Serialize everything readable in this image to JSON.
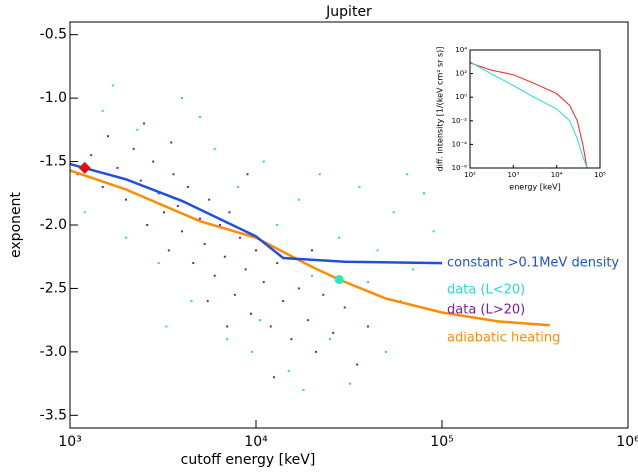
{
  "chart_data": [
    {
      "type": "scatter",
      "title": "Jupiter",
      "x_label": "cutoff energy [keV]",
      "y_label": "exponent",
      "x_log": true,
      "xlim": [
        1000,
        1000000
      ],
      "xticks": [
        {
          "value": 1000,
          "label": "10³"
        },
        {
          "value": 10000,
          "label": "10⁴"
        },
        {
          "value": 100000,
          "label": "10⁵"
        },
        {
          "value": 1000000,
          "label": "10⁶"
        }
      ],
      "ylim": [
        -3.6,
        -0.4
      ],
      "yticks": [
        -0.5,
        {
          "value": -1,
          "label": "-1.0"
        },
        -1.5,
        {
          "value": -2,
          "label": "-2.0"
        },
        -2.5,
        {
          "value": -3,
          "label": "-3.0"
        },
        -3.5
      ],
      "series": [
        {
          "name": "data (L>20)",
          "kind": "points",
          "color": "#7a1ea0",
          "x": [
            1100,
            1300,
            1500,
            1600,
            1800,
            2000,
            2200,
            2400,
            2600,
            2800,
            3000,
            3200,
            3400,
            3600,
            3800,
            4000,
            4300,
            4600,
            5000,
            5300,
            5600,
            6000,
            6400,
            6800,
            7200,
            7700,
            8200,
            8800,
            9400,
            10000,
            11000,
            12000,
            13000,
            14000,
            15500,
            17000,
            19000,
            21000,
            23000,
            26000,
            30000,
            35000,
            40000,
            2500,
            3500,
            5500,
            7000,
            9000,
            12500,
            20000
          ],
          "values": [
            -1.6,
            -1.45,
            -1.7,
            -1.3,
            -1.55,
            -1.8,
            -1.4,
            -1.65,
            -2.0,
            -1.5,
            -1.75,
            -1.9,
            -2.2,
            -1.6,
            -1.85,
            -2.05,
            -1.7,
            -2.3,
            -1.95,
            -2.15,
            -1.8,
            -2.4,
            -2.0,
            -2.25,
            -1.9,
            -2.55,
            -2.1,
            -2.35,
            -2.7,
            -2.2,
            -2.45,
            -2.8,
            -2.3,
            -2.6,
            -2.9,
            -2.5,
            -2.75,
            -3.0,
            -2.55,
            -2.85,
            -2.65,
            -3.1,
            -2.8,
            -1.2,
            -1.35,
            -2.6,
            -2.8,
            -1.6,
            -3.2,
            -2.2
          ]
        },
        {
          "name": "data (L<20)",
          "kind": "points",
          "color": "#2ad4dc",
          "x": [
            1200,
            1500,
            1700,
            2000,
            2300,
            3000,
            4000,
            4500,
            6000,
            7000,
            8000,
            9500,
            11000,
            13000,
            15000,
            17000,
            20000,
            22000,
            25000,
            28000,
            32000,
            36000,
            40000,
            45000,
            50000,
            55000,
            60000,
            70000,
            80000,
            90000,
            3300,
            5000,
            10500,
            18000,
            65000
          ],
          "values": [
            -1.9,
            -1.1,
            -0.9,
            -2.1,
            -1.25,
            -2.3,
            -1.0,
            -2.6,
            -1.4,
            -2.9,
            -1.7,
            -3.0,
            -1.5,
            -2.0,
            -3.15,
            -1.8,
            -2.4,
            -1.6,
            -2.9,
            -2.1,
            -3.25,
            -1.7,
            -2.45,
            -2.2,
            -3.0,
            -1.9,
            -2.6,
            -2.35,
            -1.75,
            -2.05,
            -2.8,
            -1.15,
            -2.75,
            -3.3,
            -1.6
          ]
        },
        {
          "name": "adiabatic heating",
          "kind": "line",
          "color": "#ff8c00",
          "x": [
            1000,
            2000,
            5000,
            10000,
            20000,
            28000,
            50000,
            100000,
            200000,
            380000
          ],
          "values": [
            -1.57,
            -1.72,
            -1.97,
            -2.1,
            -2.33,
            -2.43,
            -2.58,
            -2.69,
            -2.76,
            -2.79
          ]
        },
        {
          "name": "constant >0.1MeV density",
          "kind": "line",
          "color": "#1f4fe0",
          "x": [
            1000,
            2000,
            4000,
            10000,
            14000,
            30000,
            100000
          ],
          "values": [
            -1.52,
            -1.64,
            -1.81,
            -2.09,
            -2.26,
            -2.29,
            -2.3
          ]
        }
      ],
      "markers": [
        {
          "x": 1200,
          "value": -1.55,
          "color": "#e01010",
          "shape": "diamond"
        },
        {
          "x": 28000,
          "value": -2.43,
          "color": "#2ae6c0",
          "shape": "circle"
        }
      ]
    },
    {
      "type": "line",
      "x_label": "energy [keV]",
      "y_label": "diff. intensity [1/(keV cm² sr s)]",
      "x_log": true,
      "y_log": true,
      "xlim": [
        100,
        100000
      ],
      "xticks": [
        {
          "value": 100,
          "label": "10²"
        },
        {
          "value": 1000,
          "label": "10³"
        },
        {
          "value": 10000,
          "label": "10⁴"
        },
        {
          "value": 100000,
          "label": "10⁵"
        }
      ],
      "ylim": [
        1e-06,
        10000
      ],
      "yticks": [
        {
          "value": 1e-06,
          "label": "10⁻⁶"
        },
        {
          "value": 0.0001,
          "label": "10⁻⁴"
        },
        {
          "value": 0.01,
          "label": "10⁻²"
        },
        {
          "value": 1,
          "label": "10⁰"
        },
        {
          "value": 100,
          "label": "10²"
        },
        {
          "value": 10000,
          "label": "10⁴"
        }
      ],
      "series": [
        {
          "color": "#ff2020",
          "x": [
            100,
            300,
            1000,
            3000,
            10000,
            20000,
            30000,
            40000,
            50000
          ],
          "values": [
            800,
            200,
            80,
            15,
            2,
            0.2,
            0.01,
            0.0001,
            1e-06
          ]
        },
        {
          "color": "#20e0e0",
          "x": [
            100,
            300,
            1000,
            3000,
            10000,
            20000,
            30000,
            40000,
            50000
          ],
          "values": [
            1000,
            100,
            10,
            1,
            0.1,
            0.01,
            0.0003,
            1e-05,
            1e-06
          ]
        }
      ]
    }
  ]
}
